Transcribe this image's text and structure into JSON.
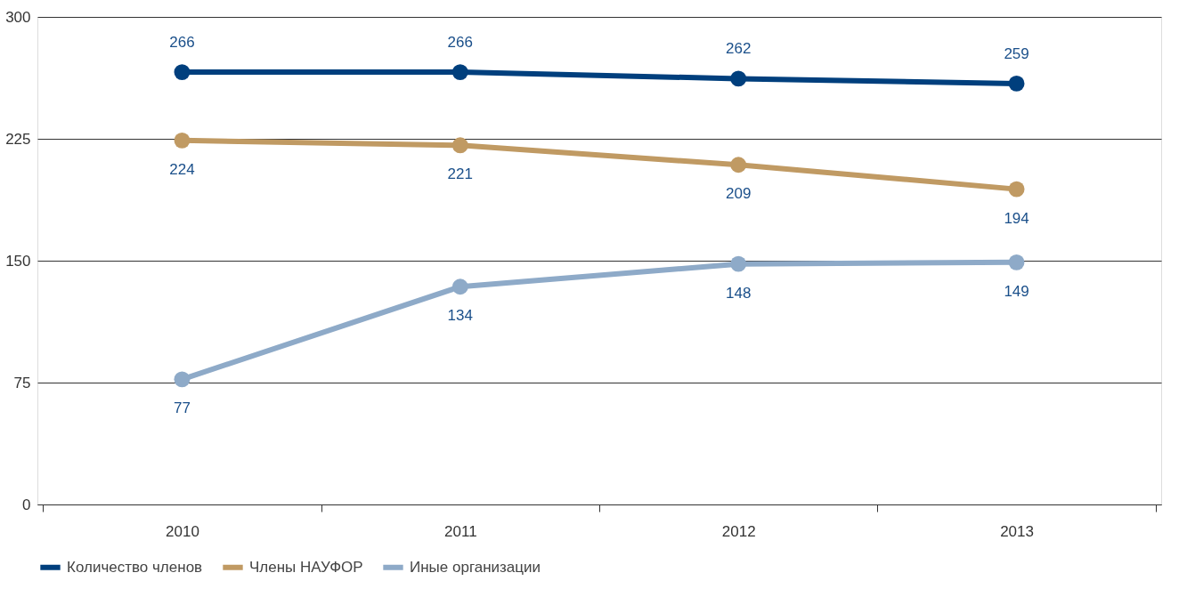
{
  "chart_data": {
    "type": "line",
    "categories": [
      "2010",
      "2011",
      "2012",
      "2013"
    ],
    "series": [
      {
        "name": "Количество членов",
        "color": "#003f7d",
        "values": [
          266,
          266,
          262,
          259
        ]
      },
      {
        "name": "Члены НАУФОР",
        "color": "#c09a63",
        "values": [
          224,
          221,
          209,
          194
        ]
      },
      {
        "name": "Иные организации",
        "color": "#8eaac8",
        "values": [
          77,
          134,
          148,
          149
        ]
      }
    ],
    "ylim": [
      0,
      300
    ],
    "yticks": [
      0,
      75,
      150,
      225,
      300
    ],
    "grid": "y",
    "legend": "bottom left",
    "marker": "circle",
    "line_style": "solid",
    "data_labels": true
  }
}
